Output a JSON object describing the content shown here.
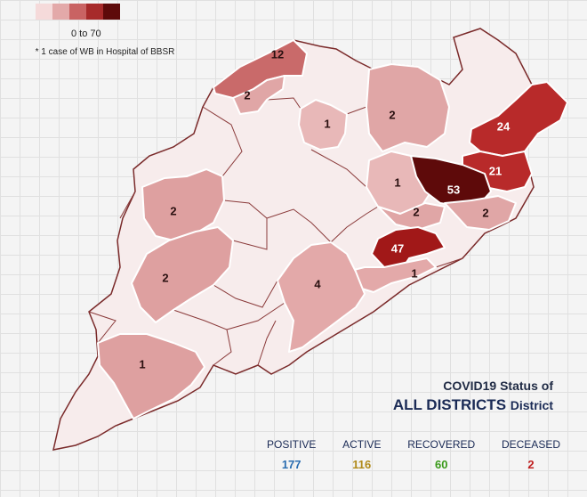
{
  "legend": {
    "colors": [
      "#f5dada",
      "#e3a9a9",
      "#c96363",
      "#a72a2a",
      "#5e0a0a"
    ],
    "range_label": "0 to 70",
    "note": "* 1 case of WB in Hospital of BBSR"
  },
  "districts": [
    {
      "key": "north_center",
      "label": "12",
      "color": "#c96a6a"
    },
    {
      "key": "north_small",
      "label": "2",
      "color": "#e0a6a6"
    },
    {
      "key": "central_north",
      "label": "1",
      "color": "#e8b8b8"
    },
    {
      "key": "keonjhar",
      "label": "2",
      "color": "#e0a6a6"
    },
    {
      "key": "balasore",
      "label": "24",
      "color": "#b82a2a"
    },
    {
      "key": "bhadrak",
      "label": "21",
      "color": "#b82a2a"
    },
    {
      "key": "jajpur",
      "label": "1",
      "color": "#e8b8b8"
    },
    {
      "key": "cuttack_dark",
      "label": "53",
      "color": "#5e0a0a"
    },
    {
      "key": "west_mid",
      "label": "2",
      "color": "#dea0a0"
    },
    {
      "key": "central_small",
      "label": "2",
      "color": "#e0a6a6"
    },
    {
      "key": "kendrapara",
      "label": "2",
      "color": "#e0a6a6"
    },
    {
      "key": "khurda",
      "label": "47",
      "color": "#a11818"
    },
    {
      "key": "puri",
      "label": "1",
      "color": "#e3a9a9"
    },
    {
      "key": "southwest",
      "label": "2",
      "color": "#dea0a0"
    },
    {
      "key": "ganjam",
      "label": "4",
      "color": "#e3a9a9"
    },
    {
      "key": "koraput",
      "label": "1",
      "color": "#dea0a0"
    }
  ],
  "status": {
    "title": "COVID19 Status of",
    "main": "ALL DISTRICTS",
    "suffix": "District"
  },
  "stats": [
    {
      "label": "POSITIVE",
      "value": "177",
      "color": "#2a6db0"
    },
    {
      "label": "ACTIVE",
      "value": "116",
      "color": "#b08a1a"
    },
    {
      "label": "RECOVERED",
      "value": "60",
      "color": "#3a9a1a"
    },
    {
      "label": "DECEASED",
      "value": "2",
      "color": "#c02020"
    }
  ]
}
